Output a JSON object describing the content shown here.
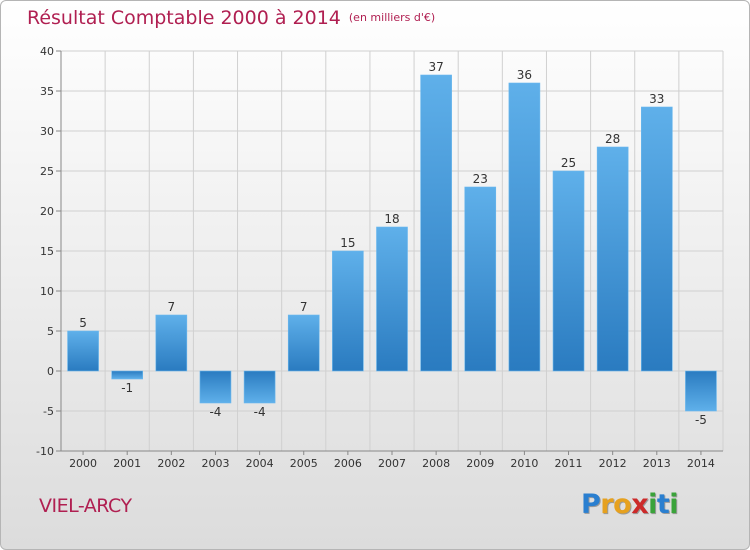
{
  "title": "Résultat Comptable 2000 à 2014",
  "subtitle": "(en milliers d'€)",
  "town": "VIEL-ARCY",
  "logo": {
    "letters": [
      "P",
      "r",
      "o",
      "x",
      "i",
      "t",
      "i"
    ],
    "colors": [
      "#2a7fd0",
      "#e6a11f",
      "#e6a11f",
      "#cc2a2a",
      "#3aa33a",
      "#2a7fd0",
      "#3aa33a"
    ]
  },
  "colors": {
    "bar_top": "#5fb0ea",
    "bar_bottom": "#2a7bc0",
    "text": "#b01f51"
  },
  "chart_data": {
    "type": "bar",
    "categories": [
      "2000",
      "2001",
      "2002",
      "2003",
      "2004",
      "2005",
      "2006",
      "2007",
      "2008",
      "2009",
      "2010",
      "2011",
      "2012",
      "2013",
      "2014"
    ],
    "values": [
      5,
      -1,
      7,
      -4,
      -4,
      7,
      15,
      18,
      37,
      23,
      36,
      25,
      28,
      33,
      -5
    ],
    "value_labels": [
      "5",
      "-1",
      "7",
      "-4",
      "-4",
      "7",
      "15",
      "18",
      "37",
      "23",
      "36",
      "25",
      "28",
      "33",
      "-5"
    ],
    "ylim": [
      -10,
      40
    ],
    "yticks": [
      -10,
      -5,
      0,
      5,
      10,
      15,
      20,
      25,
      30,
      35,
      40
    ],
    "ytick_labels": [
      "-10",
      "-5",
      "0",
      "5",
      "10",
      "15",
      "20",
      "25",
      "30",
      "35",
      "40"
    ],
    "grid": true
  }
}
